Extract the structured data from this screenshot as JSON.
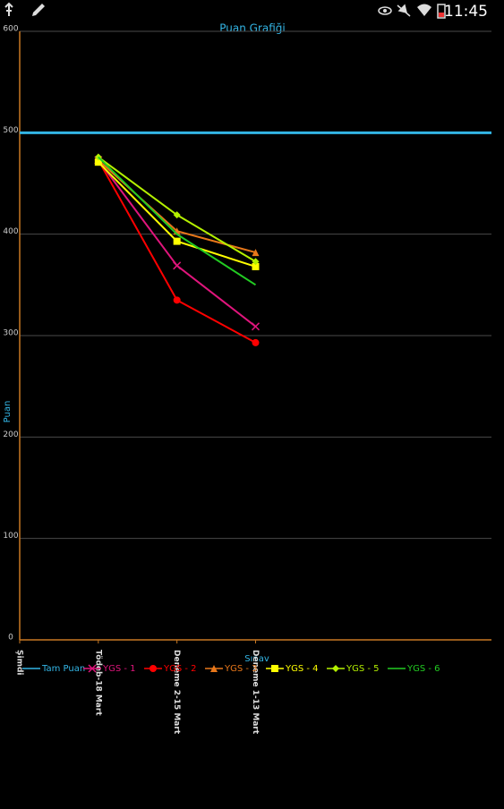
{
  "status_bar": {
    "time": "11:45"
  },
  "chart_data": {
    "type": "line",
    "title": "Puan Grafiği",
    "x_label": "Sınav",
    "y_label": "Puan",
    "categories": [
      "Şimdi",
      "Tödeb-18 Mart",
      "Deneme 2-15 Mart",
      "Deneme 1-13 Mart"
    ],
    "xlim": [
      0,
      6
    ],
    "ylim": [
      0,
      600
    ],
    "yticks": [
      0,
      100,
      200,
      300,
      400,
      500,
      600
    ],
    "grid": true,
    "axis_color": "#c87822",
    "grid_color": "#4a4a4a",
    "series": [
      {
        "name": "Tam Puan",
        "color": "#33b5e5",
        "marker": "none",
        "x": [
          0,
          6
        ],
        "values": [
          500,
          500
        ]
      },
      {
        "name": "YGS - 1",
        "color": "#e0157c",
        "marker": "x",
        "values": [
          null,
          473,
          369,
          309
        ]
      },
      {
        "name": "YGS - 2",
        "color": "#ff0000",
        "marker": "circle",
        "values": [
          null,
          473,
          335,
          293
        ]
      },
      {
        "name": "YGS - 3",
        "color": "#e8771a",
        "marker": "triangle",
        "values": [
          null,
          473,
          403,
          382
        ]
      },
      {
        "name": "YGS - 4",
        "color": "#ffff00",
        "marker": "square",
        "values": [
          null,
          471,
          393,
          368
        ]
      },
      {
        "name": "YGS - 5",
        "color": "#b4f000",
        "marker": "diamond",
        "values": [
          null,
          476,
          419,
          373
        ]
      },
      {
        "name": "YGS - 6",
        "color": "#22cc22",
        "marker": "none",
        "values": [
          null,
          476,
          400,
          350
        ]
      }
    ]
  }
}
